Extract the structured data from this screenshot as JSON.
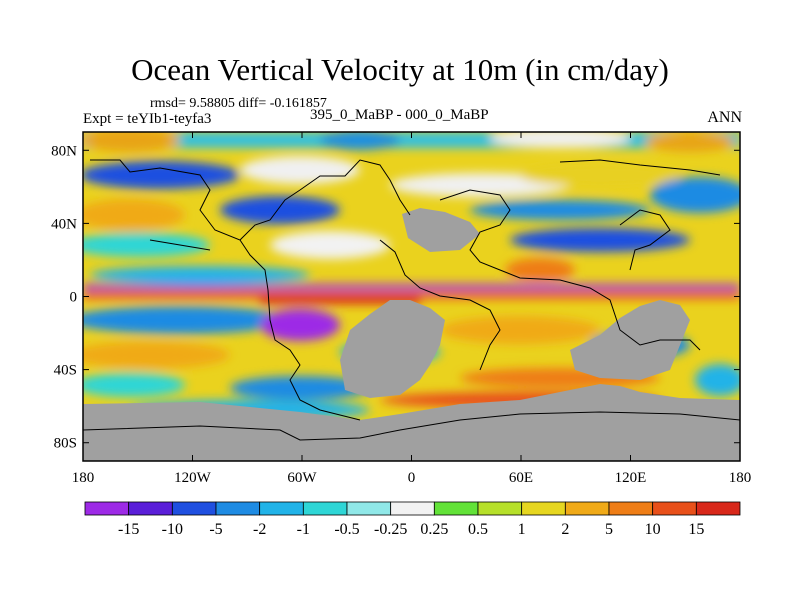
{
  "chart_data": {
    "type": "heatmap",
    "title": "Ocean Vertical Velocity at 10m (in cm/day)",
    "stats": "rmsd= 9.58805 diff= -0.161857",
    "experiment": "Expt = teYIb1-teyfa3",
    "center_label": "395_0_MaBP - 000_0_MaBP",
    "season": "ANN",
    "x_ticks": [
      "180",
      "120W",
      "60W",
      "0",
      "60E",
      "120E",
      "180"
    ],
    "x_tick_values": [
      -180,
      -120,
      -60,
      0,
      60,
      120,
      180
    ],
    "y_ticks": [
      "80N",
      "40N",
      "0",
      "40S",
      "80S"
    ],
    "y_tick_values": [
      80,
      40,
      0,
      -40,
      -80
    ],
    "xlim": [
      -180,
      180
    ],
    "ylim": [
      -90,
      90
    ],
    "colorbar": {
      "labels": [
        "-15",
        "-10",
        "-5",
        "-2",
        "-1",
        "-0.5",
        "-0.25",
        "0.25",
        "0.5",
        "1",
        "2",
        "5",
        "10",
        "15"
      ],
      "colors": [
        "#9d2ae6",
        "#5a1ed8",
        "#1f4fe0",
        "#1e8be3",
        "#21b3e8",
        "#2ed6d6",
        "#90e8e8",
        "#f2f2f2",
        "#62e238",
        "#b6e02a",
        "#e6d620",
        "#f0aa18",
        "#ee7d16",
        "#e8501a",
        "#d8281a"
      ]
    },
    "land_color": "#a0a0a0"
  }
}
